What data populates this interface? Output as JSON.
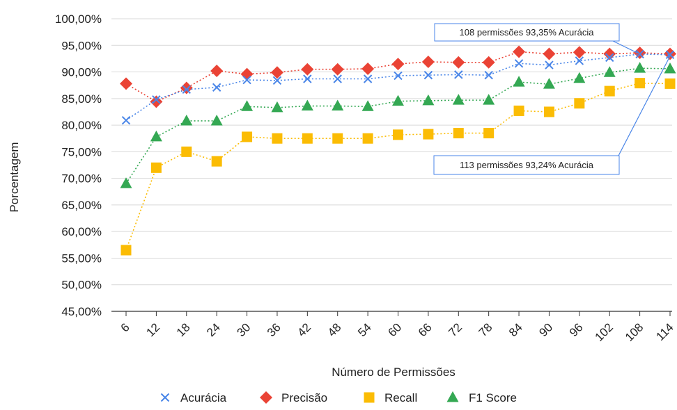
{
  "chart_data": {
    "type": "line",
    "xlabel": "Número de Permissões",
    "ylabel": "Porcentagem",
    "categories": [
      "6",
      "12",
      "18",
      "24",
      "30",
      "36",
      "42",
      "48",
      "54",
      "60",
      "66",
      "72",
      "78",
      "84",
      "90",
      "96",
      "102",
      "108",
      "114"
    ],
    "y_ticks": [
      "45,00%",
      "50,00%",
      "55,00%",
      "60,00%",
      "65,00%",
      "70,00%",
      "75,00%",
      "80,00%",
      "85,00%",
      "90,00%",
      "95,00%",
      "100,00%"
    ],
    "ylim": [
      45,
      100
    ],
    "grid": "horizontal",
    "legend_position": "bottom",
    "series": [
      {
        "name": "Acurácia",
        "marker": "x",
        "color": "#4a86e8",
        "values": [
          80.9,
          84.8,
          86.7,
          87.1,
          88.5,
          88.4,
          88.7,
          88.7,
          88.7,
          89.3,
          89.4,
          89.5,
          89.4,
          91.6,
          91.3,
          92.1,
          92.7,
          93.35,
          93.24
        ]
      },
      {
        "name": "Precisão",
        "marker": "diamond",
        "color": "#ea4335",
        "values": [
          87.8,
          84.4,
          87.0,
          90.2,
          89.6,
          89.9,
          90.5,
          90.5,
          90.6,
          91.5,
          91.9,
          91.8,
          91.8,
          93.8,
          93.4,
          93.7,
          93.4,
          93.6,
          93.4
        ]
      },
      {
        "name": "Recall",
        "marker": "square",
        "color": "#fbbc04",
        "values": [
          56.5,
          72.0,
          75.0,
          73.2,
          77.8,
          77.5,
          77.5,
          77.5,
          77.5,
          78.2,
          78.3,
          78.5,
          78.5,
          82.7,
          82.5,
          84.1,
          86.4,
          87.9,
          87.8
        ]
      },
      {
        "name": "F1 Score",
        "marker": "triangle",
        "color": "#34a853",
        "values": [
          69.0,
          77.8,
          80.8,
          80.8,
          83.5,
          83.3,
          83.6,
          83.6,
          83.5,
          84.5,
          84.6,
          84.7,
          84.7,
          88.1,
          87.7,
          88.8,
          89.9,
          90.7,
          90.6
        ]
      }
    ],
    "annotations": [
      {
        "text": "108 permissões 93,35% Acurácia",
        "x": "108",
        "y": 93.35
      },
      {
        "text": "113 permissões 93,24% Acurácia",
        "x": "114",
        "y": 93.24
      }
    ]
  }
}
